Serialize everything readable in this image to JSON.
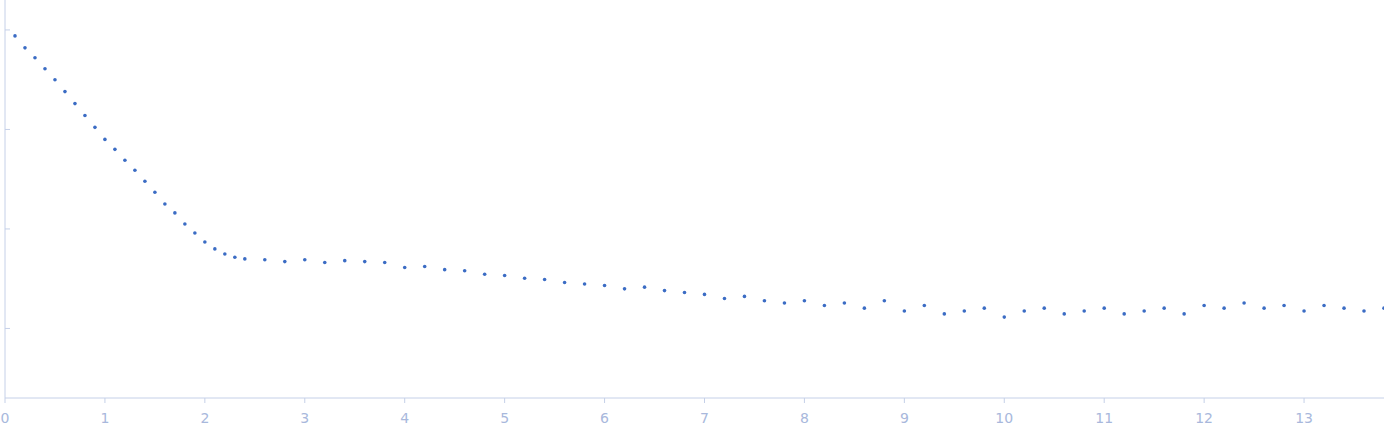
{
  "chart_data": {
    "type": "scatter",
    "log": "y",
    "tick_labels": "x",
    "color": "#3b6cc4",
    "marker": "circle",
    "xlim": [
      0,
      13.8
    ],
    "ylim": [
      0.0002,
      2
    ],
    "xticks": [
      0,
      1,
      2,
      3,
      4,
      5,
      6,
      7,
      8,
      9,
      10,
      11,
      12,
      13
    ],
    "yticks": [
      0.001,
      0.01,
      0.1,
      1
    ],
    "x": [
      0.1,
      0.2,
      0.3,
      0.4,
      0.5,
      0.6,
      0.7,
      0.8,
      0.9,
      1.0,
      1.1,
      1.2,
      1.3,
      1.4,
      1.5,
      1.6,
      1.7,
      1.8,
      1.9,
      2.0,
      2.1,
      2.2,
      2.3,
      2.4,
      2.6,
      2.8,
      3.0,
      3.2,
      3.4,
      3.6,
      3.8,
      4.0,
      4.2,
      4.4,
      4.6,
      4.8,
      5.0,
      5.2,
      5.4,
      5.6,
      5.8,
      6.0,
      6.2,
      6.4,
      6.6,
      6.8,
      7.0,
      7.2,
      7.4,
      7.6,
      7.8,
      8.0,
      8.2,
      8.4,
      8.6,
      8.8,
      9.0,
      9.2,
      9.4,
      9.6,
      9.8,
      10.0,
      10.2,
      10.4,
      10.6,
      10.8,
      11.0,
      11.2,
      11.4,
      11.6,
      11.8,
      12.0,
      12.2,
      12.4,
      12.6,
      12.8,
      13.0,
      13.2,
      13.4,
      13.6,
      13.8
    ],
    "values": [
      0.871,
      0.661,
      0.525,
      0.407,
      0.316,
      0.24,
      0.182,
      0.138,
      0.105,
      0.0794,
      0.0631,
      0.049,
      0.0389,
      0.0302,
      0.0234,
      0.0178,
      0.0145,
      0.0112,
      0.0091,
      0.0074,
      0.0063,
      0.0056,
      0.0052,
      0.005,
      0.0049,
      0.0047,
      0.0049,
      0.0046,
      0.0048,
      0.0047,
      0.0046,
      0.0041,
      0.0042,
      0.0039,
      0.0038,
      0.0035,
      0.0034,
      0.0032,
      0.0031,
      0.0029,
      0.0028,
      0.0027,
      0.0025,
      0.0026,
      0.0024,
      0.0023,
      0.0022,
      0.002,
      0.0021,
      0.0019,
      0.0018,
      0.0019,
      0.0017,
      0.0018,
      0.0016,
      0.0019,
      0.0015,
      0.0017,
      0.0014,
      0.0015,
      0.0016,
      0.0013,
      0.0015,
      0.0016,
      0.0014,
      0.0015,
      0.0016,
      0.0014,
      0.0015,
      0.0016,
      0.0014,
      0.0017,
      0.0016,
      0.0018,
      0.0016,
      0.0017,
      0.0015,
      0.0017,
      0.0016,
      0.0015,
      0.0016
    ]
  }
}
